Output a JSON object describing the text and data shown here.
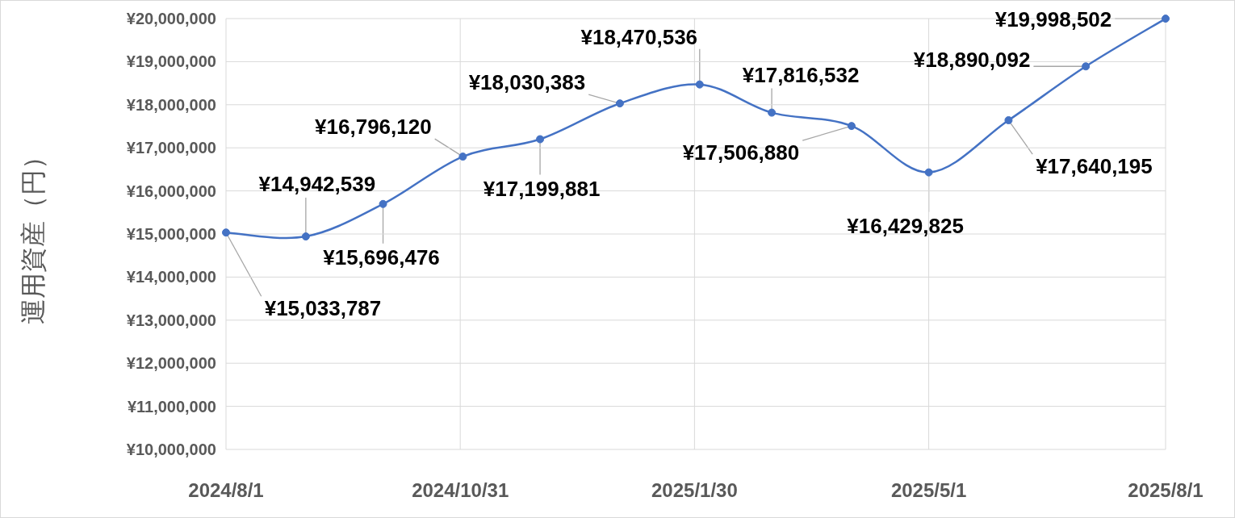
{
  "chart_data": {
    "type": "line",
    "ylabel": "運用資産（円）",
    "x": [
      "2024-08-01",
      "2024-09-01",
      "2024-10-01",
      "2024-11-01",
      "2024-12-01",
      "2025-01-01",
      "2025-02-01",
      "2025-03-01",
      "2025-04-01",
      "2025-05-01",
      "2025-06-01",
      "2025-07-01",
      "2025-08-01"
    ],
    "series": [
      {
        "color": "#4472c4",
        "values": [
          15033787,
          14942539,
          15696476,
          16796120,
          17199881,
          18030383,
          18470536,
          17816532,
          17506880,
          16429825,
          17640195,
          18890092,
          19998502
        ],
        "value_labels": [
          "¥15,033,787",
          "¥14,942,539",
          "¥15,696,476",
          "¥16,796,120",
          "¥17,199,881",
          "¥18,030,383",
          "¥18,470,536",
          "¥17,816,532",
          "¥17,506,880",
          "¥16,429,825",
          "¥17,640,195",
          "¥18,890,092",
          "¥19,998,502"
        ]
      }
    ],
    "xlim": [
      "2024-08-01",
      "2025-08-01"
    ],
    "xticks": [
      {
        "value": "2024-08-01",
        "label": "2024/8/1"
      },
      {
        "value": "2024-10-31",
        "label": "2024/10/31"
      },
      {
        "value": "2025-01-30",
        "label": "2025/1/30"
      },
      {
        "value": "2025-05-01",
        "label": "2025/5/1"
      },
      {
        "value": "2025-08-01",
        "label": "2025/8/1"
      }
    ],
    "ylim": [
      10000000,
      20000000
    ],
    "yticks": [
      {
        "value": 10000000,
        "label": "¥10,000,000"
      },
      {
        "value": 11000000,
        "label": "¥11,000,000"
      },
      {
        "value": 12000000,
        "label": "¥12,000,000"
      },
      {
        "value": 13000000,
        "label": "¥13,000,000"
      },
      {
        "value": 14000000,
        "label": "¥14,000,000"
      },
      {
        "value": 15000000,
        "label": "¥15,000,000"
      },
      {
        "value": 16000000,
        "label": "¥16,000,000"
      },
      {
        "value": 17000000,
        "label": "¥17,000,000"
      },
      {
        "value": 18000000,
        "label": "¥18,000,000"
      },
      {
        "value": 19000000,
        "label": "¥19,000,000"
      },
      {
        "value": 20000000,
        "label": "¥20,000,000"
      }
    ],
    "grid": true,
    "marker": "circle",
    "line_style": "solid"
  }
}
